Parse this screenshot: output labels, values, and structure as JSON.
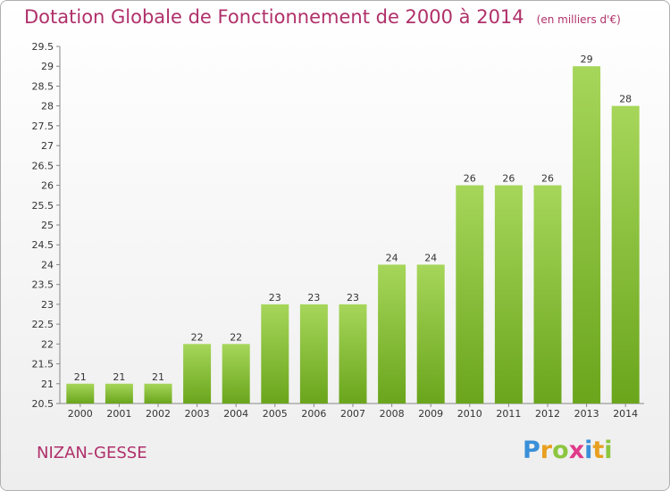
{
  "header": {
    "title": "Dotation Globale de Fonctionnement de 2000 à 2014",
    "subtitle": "(en milliers d'€)"
  },
  "footer": {
    "commune": "NIZAN-GESSE",
    "logo_letters": [
      {
        "ch": "P",
        "color": "#3a8fd8"
      },
      {
        "ch": "r",
        "color": "#e8a020"
      },
      {
        "ch": "o",
        "color": "#8cc63f"
      },
      {
        "ch": "x",
        "color": "#e03a8a"
      },
      {
        "ch": "i",
        "color": "#3a8fd8"
      },
      {
        "ch": "t",
        "color": "#e8a020"
      },
      {
        "ch": "i",
        "color": "#8cc63f"
      }
    ]
  },
  "chart_data": {
    "type": "bar",
    "categories": [
      "2000",
      "2001",
      "2002",
      "2003",
      "2004",
      "2005",
      "2006",
      "2007",
      "2008",
      "2009",
      "2010",
      "2011",
      "2012",
      "2013",
      "2014"
    ],
    "values": [
      21,
      21,
      21,
      22,
      22,
      23,
      23,
      23,
      24,
      24,
      26,
      26,
      26,
      29,
      28
    ],
    "data_labels": [
      "21",
      "21",
      "21",
      "22",
      "22",
      "23",
      "23",
      "23",
      "24",
      "24",
      "26",
      "26",
      "26",
      "29",
      "28"
    ],
    "ylim": [
      20.5,
      29.5
    ],
    "yticks": [
      "20.5",
      "21",
      "21.5",
      "22",
      "22.5",
      "23",
      "23.5",
      "24",
      "24.5",
      "25",
      "25.5",
      "26",
      "26.5",
      "27",
      "27.5",
      "28",
      "28.5",
      "29",
      "29.5"
    ],
    "grid": false,
    "colors": {
      "bar_top": "#a6d65a",
      "bar_bottom": "#6aa51c",
      "axis": "#888888",
      "text": "#333333"
    }
  }
}
